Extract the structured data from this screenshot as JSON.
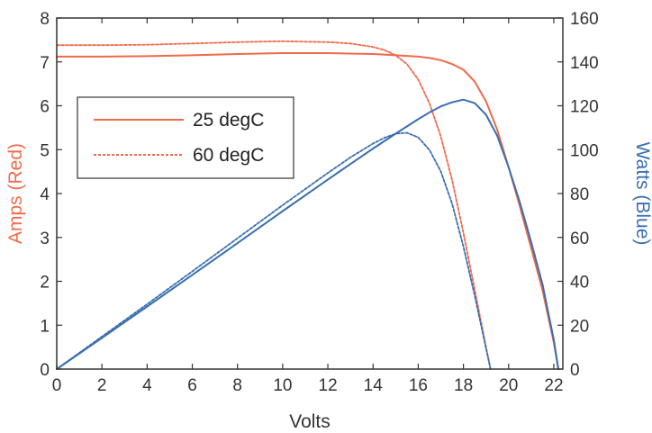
{
  "chart_data": {
    "type": "line",
    "xlabel": "Volts",
    "ylabel_left": "Amps (Red)",
    "ylabel_right": "Watts (Blue)",
    "xlim": [
      0,
      22
    ],
    "ylim_left": [
      0,
      8
    ],
    "ylim_right": [
      0,
      160
    ],
    "x_ticks": [
      0,
      2,
      4,
      6,
      8,
      10,
      12,
      14,
      16,
      18,
      20,
      22
    ],
    "y_left_ticks": [
      0,
      1,
      2,
      3,
      4,
      5,
      6,
      7,
      8
    ],
    "y_right_ticks": [
      0,
      20,
      40,
      60,
      80,
      100,
      120,
      140,
      160
    ],
    "grid": false,
    "legend_position": "upper-left",
    "legend": [
      {
        "label": "25 degC",
        "style": "solid"
      },
      {
        "label": "60 degC",
        "style": "dotted"
      }
    ],
    "colors": {
      "current": "#ef6a4a",
      "power": "#3a6fb0"
    },
    "series": [
      {
        "name": "25 degC",
        "quantity": "current",
        "axis": "left",
        "style": "solid",
        "x": [
          0,
          2,
          4,
          6,
          8,
          10,
          12,
          14,
          15,
          16,
          16.5,
          17,
          17.5,
          18,
          18.5,
          19,
          19.5,
          20,
          20.5,
          21,
          21.5,
          22,
          22.2
        ],
        "y": [
          7.12,
          7.12,
          7.13,
          7.15,
          7.18,
          7.2,
          7.2,
          7.18,
          7.15,
          7.12,
          7.09,
          7.04,
          6.95,
          6.82,
          6.55,
          6.1,
          5.45,
          4.6,
          3.7,
          2.75,
          1.8,
          0.6,
          0
        ]
      },
      {
        "name": "60 degC",
        "quantity": "current",
        "axis": "left",
        "style": "dotted",
        "x": [
          0,
          2,
          4,
          6,
          8,
          10,
          12,
          13,
          14,
          14.5,
          15,
          15.5,
          16,
          16.5,
          17,
          17.5,
          18,
          18.5,
          19,
          19.2
        ],
        "y": [
          7.38,
          7.38,
          7.39,
          7.42,
          7.45,
          7.47,
          7.45,
          7.42,
          7.34,
          7.27,
          7.15,
          6.95,
          6.6,
          6.05,
          5.3,
          4.3,
          3.1,
          1.8,
          0.5,
          0
        ]
      },
      {
        "name": "25 degC",
        "quantity": "power",
        "axis": "right",
        "style": "solid",
        "x": [
          0,
          2,
          4,
          6,
          8,
          10,
          12,
          14,
          15,
          16,
          16.5,
          17,
          17.5,
          18,
          18.5,
          19,
          19.5,
          20,
          20.5,
          21,
          21.5,
          22,
          22.2
        ],
        "y": [
          0,
          14.2,
          28.5,
          42.9,
          57.4,
          72,
          86.4,
          100.5,
          107.3,
          113.9,
          117,
          119.7,
          121.6,
          122.8,
          121.2,
          115.9,
          106.3,
          92,
          75.9,
          57.8,
          38.7,
          13.2,
          0
        ]
      },
      {
        "name": "60 degC",
        "quantity": "power",
        "axis": "right",
        "style": "dotted",
        "x": [
          0,
          2,
          4,
          6,
          8,
          10,
          12,
          13,
          14,
          14.5,
          15,
          15.5,
          16,
          16.5,
          17,
          17.5,
          18,
          18.5,
          19,
          19.2
        ],
        "y": [
          0,
          14.8,
          29.6,
          44.5,
          59.6,
          74.7,
          89.4,
          96.5,
          102.8,
          105.4,
          107.3,
          107.7,
          105.6,
          99.8,
          90.1,
          75.3,
          55.8,
          33.3,
          9.5,
          0
        ]
      }
    ]
  }
}
